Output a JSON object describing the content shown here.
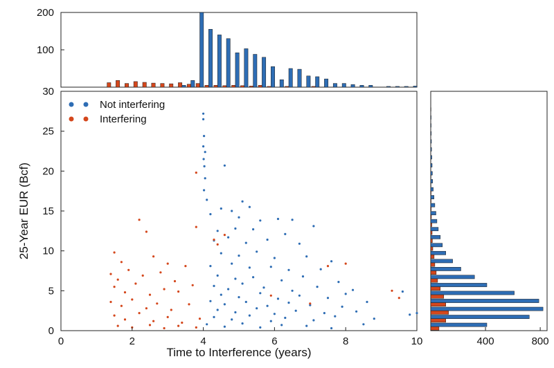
{
  "chart_data": {
    "type": "scatter",
    "colors": {
      "not_interfering": "#2e6db4",
      "interfering": "#d4471c",
      "bar_outline": "#1a1a1a"
    },
    "scatter": {
      "xlabel": "Time to Interference (years)",
      "ylabel": "25-Year EUR (Bcf)",
      "xlim": [
        0,
        10
      ],
      "ylim": [
        0,
        30
      ],
      "x_ticks": [
        "0",
        "2",
        "4",
        "6",
        "8",
        "10"
      ],
      "y_ticks": [
        "0",
        "5",
        "10",
        "15",
        "20",
        "25",
        "30"
      ],
      "legend": {
        "location": "top-left",
        "entries": [
          "Not interfering",
          "Interfering"
        ]
      },
      "series": [
        {
          "name": "Not interfering",
          "color": "#2e6db4",
          "description": "dense vertical band near x=4 (EUR up to ~27), spreading rightward to ~9 years with EUR mostly 0-10, a few outliers to ~20",
          "points": [
            [
              4.0,
              27.2
            ],
            [
              4.0,
              26.5
            ],
            [
              4.02,
              24.4
            ],
            [
              4.0,
              23.1
            ],
            [
              4.05,
              22.4
            ],
            [
              4.01,
              21.5
            ],
            [
              4.03,
              20.6
            ],
            [
              4.6,
              20.7
            ],
            [
              4.05,
              19.1
            ],
            [
              4.02,
              17.6
            ],
            [
              4.1,
              16.4
            ],
            [
              5.1,
              16.2
            ],
            [
              4.5,
              15.3
            ],
            [
              4.8,
              15.0
            ],
            [
              5.3,
              15.5
            ],
            [
              4.2,
              14.6
            ],
            [
              5.0,
              14.2
            ],
            [
              5.6,
              13.8
            ],
            [
              6.1,
              14.0
            ],
            [
              6.5,
              13.9
            ],
            [
              4.4,
              12.5
            ],
            [
              4.9,
              12.8
            ],
            [
              5.4,
              12.7
            ],
            [
              6.3,
              12.1
            ],
            [
              7.1,
              13.1
            ],
            [
              4.3,
              11.3
            ],
            [
              4.7,
              11.7
            ],
            [
              5.2,
              11.0
            ],
            [
              5.8,
              11.4
            ],
            [
              6.7,
              10.9
            ],
            [
              4.5,
              9.7
            ],
            [
              5.0,
              9.4
            ],
            [
              5.5,
              9.9
            ],
            [
              6.0,
              9.1
            ],
            [
              6.9,
              9.3
            ],
            [
              7.6,
              8.7
            ],
            [
              4.2,
              8.1
            ],
            [
              4.8,
              8.4
            ],
            [
              5.3,
              7.9
            ],
            [
              5.9,
              8.0
            ],
            [
              6.4,
              7.6
            ],
            [
              7.3,
              7.7
            ],
            [
              4.4,
              6.9
            ],
            [
              4.9,
              6.5
            ],
            [
              5.4,
              6.7
            ],
            [
              6.2,
              6.3
            ],
            [
              6.8,
              6.8
            ],
            [
              7.8,
              6.1
            ],
            [
              4.3,
              5.6
            ],
            [
              4.7,
              5.2
            ],
            [
              5.1,
              5.9
            ],
            [
              5.7,
              5.4
            ],
            [
              6.5,
              5.0
            ],
            [
              7.2,
              5.5
            ],
            [
              8.2,
              5.1
            ],
            [
              4.5,
              4.5
            ],
            [
              5.0,
              4.2
            ],
            [
              5.6,
              4.7
            ],
            [
              6.1,
              4.0
            ],
            [
              6.7,
              4.4
            ],
            [
              7.5,
              4.1
            ],
            [
              8.0,
              4.6
            ],
            [
              4.2,
              3.7
            ],
            [
              4.6,
              3.3
            ],
            [
              5.2,
              3.6
            ],
            [
              5.8,
              3.1
            ],
            [
              6.4,
              3.5
            ],
            [
              7.0,
              3.2
            ],
            [
              7.9,
              3.0
            ],
            [
              8.6,
              3.6
            ],
            [
              4.4,
              2.6
            ],
            [
              4.9,
              2.3
            ],
            [
              5.5,
              2.8
            ],
            [
              6.0,
              2.1
            ],
            [
              6.6,
              2.5
            ],
            [
              7.4,
              2.2
            ],
            [
              8.3,
              2.4
            ],
            [
              4.3,
              1.7
            ],
            [
              4.8,
              1.4
            ],
            [
              5.3,
              1.9
            ],
            [
              5.9,
              1.2
            ],
            [
              6.3,
              1.6
            ],
            [
              7.1,
              1.3
            ],
            [
              7.7,
              1.8
            ],
            [
              8.8,
              1.5
            ],
            [
              4.1,
              0.8
            ],
            [
              4.6,
              0.5
            ],
            [
              5.1,
              0.9
            ],
            [
              5.6,
              0.4
            ],
            [
              6.2,
              0.7
            ],
            [
              6.9,
              0.6
            ],
            [
              7.6,
              0.3
            ],
            [
              8.5,
              0.8
            ],
            [
              9.6,
              4.9
            ],
            [
              9.8,
              2.0
            ],
            [
              10.0,
              2.2
            ]
          ]
        },
        {
          "name": "Interfering",
          "color": "#d4471c",
          "description": "scattered cloud from ~1.4 to ~4 years with EUR mostly below 10, a few outliers beyond",
          "points": [
            [
              1.5,
              9.8
            ],
            [
              1.7,
              8.6
            ],
            [
              2.2,
              13.9
            ],
            [
              2.4,
              12.4
            ],
            [
              2.6,
              9.3
            ],
            [
              3.0,
              8.4
            ],
            [
              3.8,
              13.0
            ],
            [
              1.4,
              7.1
            ],
            [
              1.6,
              6.4
            ],
            [
              1.9,
              7.6
            ],
            [
              2.3,
              6.9
            ],
            [
              2.8,
              7.3
            ],
            [
              3.2,
              6.2
            ],
            [
              3.5,
              8.1
            ],
            [
              1.5,
              5.5
            ],
            [
              1.8,
              4.8
            ],
            [
              2.1,
              5.9
            ],
            [
              2.5,
              4.5
            ],
            [
              2.9,
              5.2
            ],
            [
              3.3,
              4.9
            ],
            [
              3.7,
              5.7
            ],
            [
              1.4,
              3.6
            ],
            [
              1.7,
              3.1
            ],
            [
              2.0,
              3.9
            ],
            [
              2.4,
              2.8
            ],
            [
              2.7,
              3.4
            ],
            [
              3.1,
              2.6
            ],
            [
              3.6,
              3.3
            ],
            [
              1.5,
              1.9
            ],
            [
              1.8,
              1.4
            ],
            [
              2.2,
              2.2
            ],
            [
              2.6,
              1.2
            ],
            [
              3.0,
              1.7
            ],
            [
              3.4,
              1.0
            ],
            [
              3.9,
              1.5
            ],
            [
              1.6,
              0.6
            ],
            [
              2.0,
              0.4
            ],
            [
              2.5,
              0.7
            ],
            [
              2.9,
              0.3
            ],
            [
              3.3,
              0.6
            ],
            [
              3.8,
              0.4
            ],
            [
              3.8,
              19.8
            ],
            [
              4.3,
              11.4
            ],
            [
              4.4,
              10.8
            ],
            [
              4.6,
              12.0
            ],
            [
              5.9,
              4.4
            ],
            [
              7.0,
              3.4
            ],
            [
              7.5,
              8.1
            ],
            [
              8.0,
              8.4
            ],
            [
              9.3,
              5.0
            ],
            [
              9.5,
              4.1
            ]
          ]
        }
      ]
    },
    "top_histogram": {
      "ylim": [
        0,
        200
      ],
      "y_ticks": [
        "100",
        "200"
      ],
      "bin_centers": [
        1.4,
        1.65,
        1.9,
        2.15,
        2.4,
        2.65,
        2.9,
        3.15,
        3.4,
        3.65,
        3.9,
        4.15,
        4.4,
        4.65,
        4.9,
        5.15,
        5.4,
        5.65,
        5.9,
        6.15,
        6.4,
        6.65,
        6.9,
        7.15,
        7.4,
        7.65,
        7.9,
        8.15,
        8.4,
        8.65,
        8.9,
        9.15,
        9.4,
        9.65,
        9.9
      ],
      "series": [
        {
          "name": "Interfering",
          "color": "#d4471c",
          "values": [
            12,
            18,
            10,
            15,
            13,
            11,
            10,
            9,
            12,
            8,
            10,
            5,
            5,
            4,
            5,
            4,
            3,
            5,
            2,
            0,
            2,
            0,
            0,
            2,
            0,
            0,
            0,
            0,
            0,
            0,
            0,
            0,
            0,
            0,
            0
          ]
        },
        {
          "name": "Not interfering",
          "color": "#2e6db4",
          "values": [
            0,
            0,
            0,
            0,
            0,
            0,
            0,
            0,
            5,
            18,
            200,
            155,
            140,
            130,
            92,
            103,
            88,
            80,
            55,
            20,
            50,
            48,
            30,
            28,
            22,
            10,
            10,
            7,
            5,
            5,
            0,
            2,
            2,
            2,
            3
          ]
        }
      ]
    },
    "right_histogram": {
      "xlim": [
        0,
        850
      ],
      "x_ticks": [
        "400",
        "800"
      ],
      "bin_centers": [
        0.5,
        1.5,
        2.5,
        3.5,
        4.5,
        5.5,
        6.5,
        7.5,
        8.5,
        9.5,
        10.5,
        11.5,
        12.5,
        13.5,
        14.5,
        15.5,
        16.5,
        17.5,
        18.5,
        19.5,
        20.5,
        21.5,
        22.5,
        23.5,
        24.5,
        25.5,
        26.5,
        27.5
      ],
      "series": [
        {
          "name": "Not interfering",
          "color": "#2e6db4",
          "values": [
            410,
            720,
            820,
            790,
            610,
            410,
            320,
            220,
            160,
            110,
            85,
            70,
            55,
            45,
            38,
            30,
            24,
            18,
            14,
            12,
            10,
            8,
            6,
            5,
            4,
            3,
            3,
            2
          ]
        },
        {
          "name": "Interfering",
          "color": "#d4471c",
          "values": [
            60,
            110,
            130,
            110,
            95,
            70,
            50,
            40,
            30,
            25,
            15,
            12,
            10,
            8,
            5,
            4,
            3,
            3,
            2,
            2,
            1,
            1,
            1,
            0,
            0,
            0,
            0,
            0
          ]
        }
      ]
    }
  }
}
